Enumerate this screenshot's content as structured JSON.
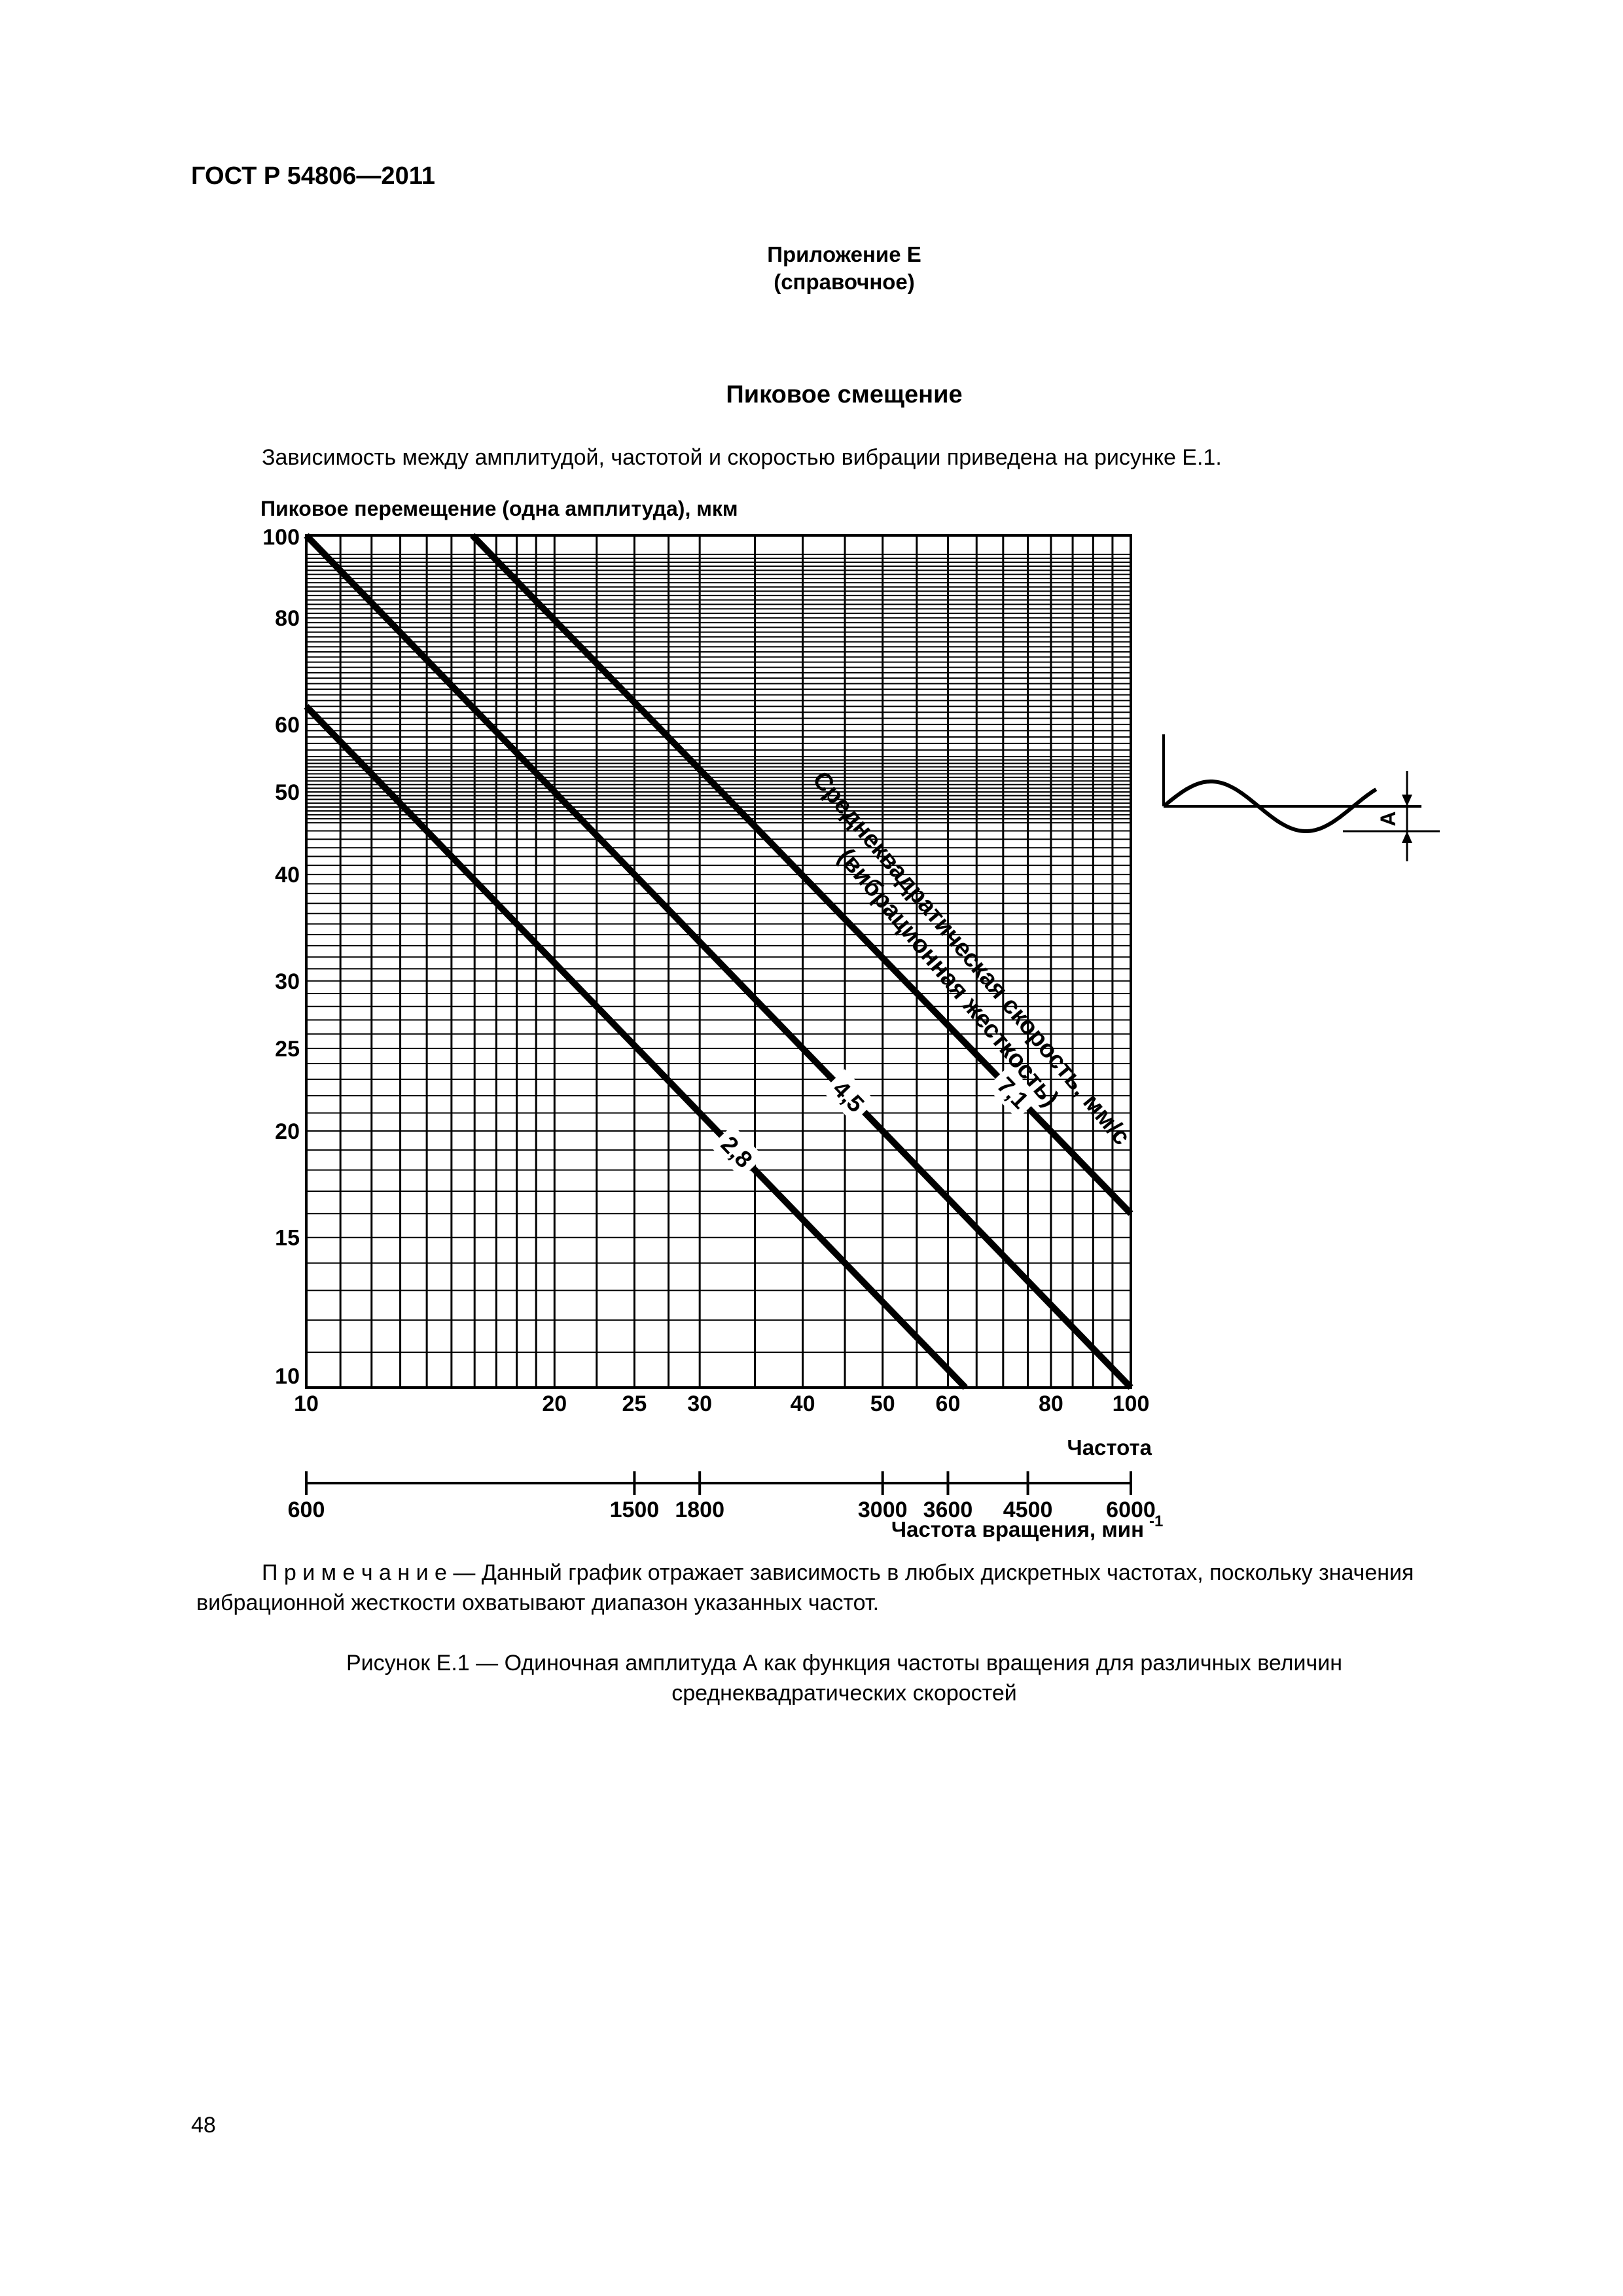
{
  "header": {
    "standard": "ГОСТ Р 54806—2011"
  },
  "appendix": {
    "title": "Приложение Е",
    "subtitle": "(справочное)"
  },
  "section": {
    "title": "Пиковое смещение"
  },
  "intro": "Зависимость между амплитудой, частотой и скоростью вибрации приведена на рисунке Е.1.",
  "note": {
    "lead": "П р и м е ч а н и е",
    "text": " — Данный график отражает зависимость в любых дискретных частотах, поскольку значения вибрационной жесткости охватывают диапазон указанных частот."
  },
  "caption": {
    "line1": "Рисунок  Е.1 — Одиночная амплитуда А как функция частоты вращения для различных величин",
    "line2": "среднеквадратических скоростей"
  },
  "page_number": "48",
  "chart_data": {
    "type": "line",
    "ylabel": "Пиковое перемещение (одна амплитуда), мкм",
    "xlabel": "Частота",
    "x2label": "Частота вращения, мин",
    "x2label_sup": "-1",
    "x_scale": "log",
    "y_scale": "log",
    "xlim": [
      10,
      100
    ],
    "ylim": [
      10,
      100
    ],
    "x_ticks": [
      "10",
      "20",
      "25",
      "30",
      "40",
      "50",
      "60",
      "80",
      "100"
    ],
    "y_ticks": [
      "10",
      "15",
      "20",
      "25",
      "30",
      "40",
      "50",
      "60",
      "80",
      "100"
    ],
    "x2_ticks": [
      "600",
      "1500",
      "1800",
      "3000",
      "3600",
      "4500",
      "6000"
    ],
    "grid": true,
    "series": [
      {
        "name": "2,8",
        "x": [
          10,
          63
        ],
        "y": [
          63,
          10
        ]
      },
      {
        "name": "4,5",
        "x": [
          10,
          100
        ],
        "y": [
          100,
          10
        ]
      },
      {
        "name": "7,1",
        "x": [
          15.9,
          100
        ],
        "y": [
          100,
          16
        ]
      }
    ],
    "annotation": "Среднеквадратическая скорость, мм/с",
    "annotation2": "(вибрационная жесткость)",
    "inset_label": "А"
  }
}
